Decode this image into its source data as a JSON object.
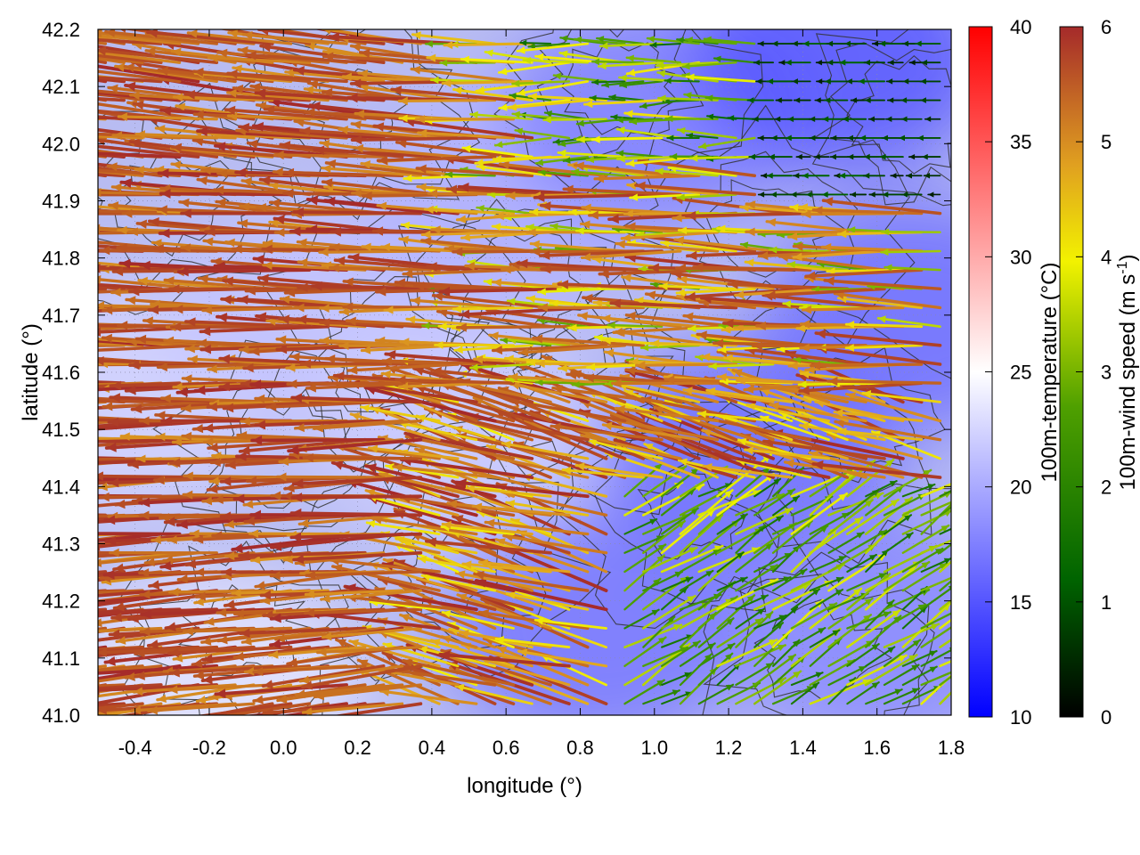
{
  "chart_data": {
    "type": "vector-field",
    "xlabel": "longitude (°)",
    "ylabel": "latitude (°)",
    "xlim": [
      -0.5,
      1.8
    ],
    "ylim": [
      41.0,
      42.2
    ],
    "xticks": [
      "-0.4",
      "-0.2",
      "0.0",
      "0.2",
      "0.4",
      "0.6",
      "0.8",
      "1.0",
      "1.2",
      "1.4",
      "1.6",
      "1.8"
    ],
    "xtick_values": [
      -0.4,
      -0.2,
      0.0,
      0.2,
      0.4,
      0.6,
      0.8,
      1.0,
      1.2,
      1.4,
      1.6,
      1.8
    ],
    "yticks": [
      "41.0",
      "41.1",
      "41.2",
      "41.3",
      "41.4",
      "41.5",
      "41.6",
      "41.7",
      "41.8",
      "41.9",
      "42.0",
      "42.1",
      "42.2"
    ],
    "ytick_values": [
      41.0,
      41.1,
      41.2,
      41.3,
      41.4,
      41.5,
      41.6,
      41.7,
      41.8,
      41.9,
      42.0,
      42.1,
      42.2
    ],
    "grid": true,
    "background_field": {
      "name": "100m-temperature",
      "colorbar_label": "100m-temperature (°C)",
      "range": [
        10,
        40
      ],
      "ticks": [
        "10",
        "15",
        "20",
        "25",
        "30",
        "35",
        "40"
      ],
      "tick_values": [
        10,
        15,
        20,
        25,
        30,
        35,
        40
      ],
      "colormap": [
        "#0000ff",
        "#ffffff",
        "#ff0000"
      ],
      "regions": [
        {
          "lon": -0.45,
          "lat": 41.55,
          "temp": 22.5
        },
        {
          "lon": -0.2,
          "lat": 41.05,
          "temp": 23.5
        },
        {
          "lon": 0.1,
          "lat": 41.7,
          "temp": 21.5
        },
        {
          "lon": 0.45,
          "lat": 41.5,
          "temp": 22.0
        },
        {
          "lon": 0.6,
          "lat": 41.9,
          "temp": 20.5
        },
        {
          "lon": 0.85,
          "lat": 41.15,
          "temp": 17.0
        },
        {
          "lon": 1.0,
          "lat": 42.05,
          "temp": 17.5
        },
        {
          "lon": 1.25,
          "lat": 41.45,
          "temp": 16.5
        },
        {
          "lon": 1.5,
          "lat": 42.15,
          "temp": 15.0
        },
        {
          "lon": 1.7,
          "lat": 41.7,
          "temp": 16.5
        },
        {
          "lon": 1.6,
          "lat": 41.15,
          "temp": 18.0
        }
      ]
    },
    "vector_field": {
      "name": "100m-wind speed",
      "colorbar_label": "100m-wind speed (m s",
      "colorbar_label_sup": "-1",
      "colorbar_label_end": ")",
      "range": [
        0,
        6
      ],
      "ticks": [
        "0",
        "1",
        "2",
        "3",
        "4",
        "5",
        "6"
      ],
      "tick_values": [
        0,
        1,
        2,
        3,
        4,
        5,
        6
      ],
      "colormap": [
        "#000000",
        "#006400",
        "#4fa000",
        "#f2f200",
        "#e0a020",
        "#c06020",
        "#a52a2a"
      ],
      "grid_lon_step": 0.05,
      "grid_lat_step": 0.033,
      "regimes": [
        {
          "region": "west (lon < 0.5)",
          "direction_deg_from": 85,
          "speed": 6.0
        },
        {
          "region": "central band 41.7-42.0",
          "direction_deg_from": 90,
          "speed": 5.5
        },
        {
          "region": "east/south-east (lon > 0.9, lat < 41.4)",
          "direction_deg_from": 250,
          "speed": 2.0
        },
        {
          "region": "north-east (lon > 1.3, lat > 41.9)",
          "direction_deg_from": 0,
          "speed": 0.5
        }
      ]
    },
    "contours": {
      "color": "#333333",
      "description_levels_count": 6
    }
  }
}
